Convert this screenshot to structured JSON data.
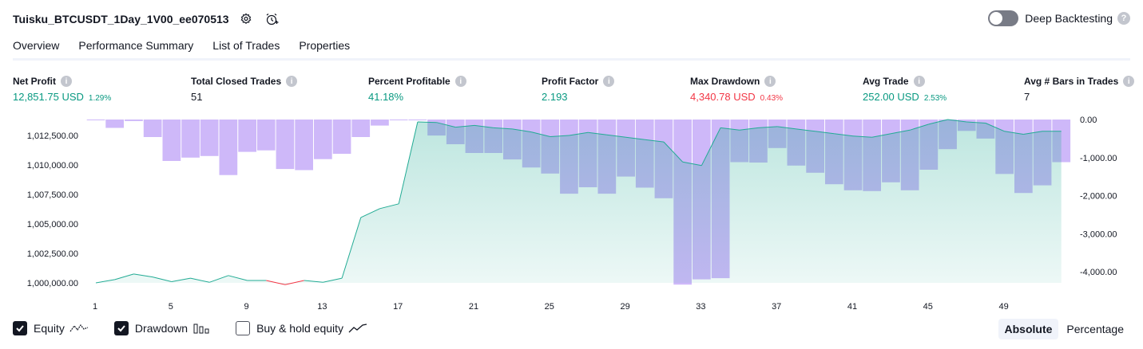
{
  "header": {
    "title": "Tuisku_BTCUSDT_1Day_1V00_ee070513",
    "settings_icon": "gear-icon",
    "alert_icon": "alarm-clock-icon"
  },
  "deep_backtesting": {
    "label": "Deep Backtesting",
    "enabled": false
  },
  "tabs": [
    {
      "label": "Overview",
      "active": true
    },
    {
      "label": "Performance Summary",
      "active": false
    },
    {
      "label": "List of Trades",
      "active": false
    },
    {
      "label": "Properties",
      "active": false
    }
  ],
  "metrics": {
    "net_profit": {
      "label": "Net Profit",
      "value": "12,851.75 USD",
      "sub": "1.29%"
    },
    "total_closed_trades": {
      "label": "Total Closed Trades",
      "value": "51"
    },
    "percent_profitable": {
      "label": "Percent Profitable",
      "value": "41.18%"
    },
    "profit_factor": {
      "label": "Profit Factor",
      "value": "2.193"
    },
    "max_drawdown": {
      "label": "Max Drawdown",
      "value": "4,340.78 USD",
      "sub": "0.43%"
    },
    "avg_trade": {
      "label": "Avg Trade",
      "value": "252.00 USD",
      "sub": "2.53%"
    },
    "avg_bars": {
      "label": "Avg # Bars in Trades",
      "value": "7"
    }
  },
  "chart_data": {
    "type": "line",
    "series": [
      {
        "name": "Equity",
        "axis": "left",
        "x": [
          1,
          2,
          3,
          4,
          5,
          6,
          7,
          8,
          9,
          10,
          11,
          12,
          13,
          14,
          15,
          16,
          17,
          18,
          19,
          20,
          21,
          22,
          23,
          24,
          25,
          26,
          27,
          28,
          29,
          30,
          31,
          32,
          33,
          34,
          35,
          36,
          37,
          38,
          39,
          40,
          41,
          42,
          43,
          44,
          45,
          46,
          47,
          48,
          49,
          50,
          51,
          52
        ],
        "values": [
          1000000,
          1000280,
          1000750,
          1000500,
          1000100,
          1000400,
          1000050,
          1000620,
          1000200,
          1000200,
          999850,
          1000200,
          1000050,
          1000400,
          1005550,
          1006300,
          1006700,
          1013650,
          1013600,
          1013200,
          1013350,
          1013150,
          1013050,
          1012800,
          1012400,
          1012500,
          1012750,
          1012550,
          1012350,
          1012150,
          1011950,
          1010250,
          1009950,
          1013150,
          1012950,
          1013150,
          1013250,
          1013050,
          1012850,
          1012650,
          1012450,
          1012350,
          1012650,
          1012950,
          1013450,
          1013850,
          1013650,
          1013550,
          1012850,
          1012600,
          1012850,
          1012850
        ]
      },
      {
        "name": "Drawdown",
        "axis": "right",
        "x": [
          1,
          2,
          3,
          4,
          5,
          6,
          7,
          8,
          9,
          10,
          11,
          12,
          13,
          14,
          15,
          16,
          17,
          18,
          19,
          20,
          21,
          22,
          23,
          24,
          25,
          26,
          27,
          28,
          29,
          30,
          31,
          32,
          33,
          34,
          35,
          36,
          37,
          38,
          39,
          40,
          41,
          42,
          43,
          44,
          45,
          46,
          47,
          48,
          49,
          50,
          51,
          52
        ],
        "values": [
          -20,
          -220,
          -40,
          -460,
          -1090,
          -1000,
          -960,
          -1460,
          -850,
          -810,
          -1300,
          -1330,
          -1040,
          -900,
          -460,
          -160,
          -20,
          -20,
          -420,
          -650,
          -880,
          -880,
          -1050,
          -1260,
          -1420,
          -1950,
          -1780,
          -1950,
          -1500,
          -1790,
          -2070,
          -4340,
          -4200,
          -4170,
          -1120,
          -1130,
          -750,
          -1210,
          -1400,
          -1700,
          -1860,
          -1880,
          -1650,
          -1860,
          -1320,
          -780,
          -300,
          -500,
          -1430,
          -1930,
          -1730,
          -1120
        ]
      }
    ],
    "left_axis": {
      "ticks": [
        "1,000,000.00",
        "1,002,500.00",
        "1,005,000.00",
        "1,007,500.00",
        "1,010,000.00",
        "1,012,500.00"
      ],
      "range": [
        999000,
        1014000
      ]
    },
    "right_axis": {
      "ticks": [
        "0.00",
        "-1,000.00",
        "-2,000.00",
        "-3,000.00",
        "-4,000.00"
      ],
      "range": [
        -4400,
        0
      ]
    },
    "x_ticks": [
      "1",
      "5",
      "9",
      "13",
      "17",
      "21",
      "25",
      "29",
      "33",
      "37",
      "41",
      "45",
      "49"
    ],
    "colors": {
      "equity_line": "#22ab94",
      "equity_loss": "#f23645",
      "drawdown": "#c9b0f8"
    }
  },
  "legend": [
    {
      "label": "Equity",
      "checked": true,
      "icon": "equity-line-icon"
    },
    {
      "label": "Drawdown",
      "checked": true,
      "icon": "drawdown-bars-icon"
    },
    {
      "label": "Buy & hold equity",
      "checked": false,
      "icon": "buy-hold-line-icon"
    }
  ],
  "mode": {
    "absolute": "Absolute",
    "percentage": "Percentage",
    "selected": "Absolute"
  }
}
